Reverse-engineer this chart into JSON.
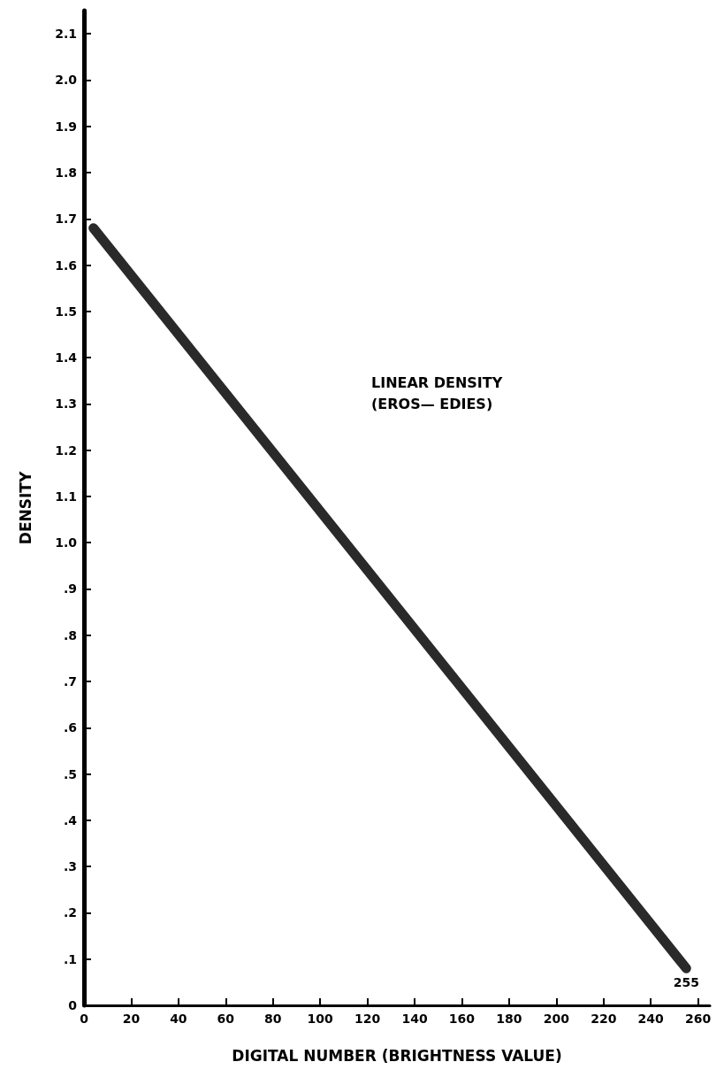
{
  "chart_data": {
    "type": "line",
    "xlabel": "DIGITAL NUMBER (BRIGHTNESS VALUE)",
    "ylabel": "DENSITY",
    "x": [
      4,
      255
    ],
    "series": [
      {
        "color": "#2a2a2a",
        "values": [
          1.68,
          0.08
        ]
      }
    ],
    "xlim": [
      0,
      265
    ],
    "xticks": [
      0,
      20,
      40,
      60,
      80,
      100,
      120,
      140,
      160,
      180,
      200,
      220,
      240,
      260
    ],
    "ylim": [
      0,
      2.15
    ],
    "yticks": [
      0,
      {
        "value": 0.1,
        "label": ".1"
      },
      {
        "value": 0.2,
        "label": ".2"
      },
      {
        "value": 0.3,
        "label": ".3"
      },
      {
        "value": 0.4,
        "label": ".4"
      },
      {
        "value": 0.5,
        "label": ".5"
      },
      {
        "value": 0.6,
        "label": ".6"
      },
      {
        "value": 0.7,
        "label": ".7"
      },
      {
        "value": 0.8,
        "label": ".8"
      },
      {
        "value": 0.9,
        "label": ".9"
      },
      {
        "value": 1.0,
        "label": "1.0"
      },
      1.1,
      1.2,
      1.3,
      1.4,
      1.5,
      1.6,
      1.7,
      1.8,
      1.9,
      {
        "value": 2.0,
        "label": "2.0"
      },
      2.1
    ],
    "annotations": [
      "LINEAR DENSITY\n(EROS— EDIES)",
      {
        "text": "255",
        "x": 255,
        "y": 0.08
      }
    ],
    "grid": false,
    "line_style": "solid"
  }
}
